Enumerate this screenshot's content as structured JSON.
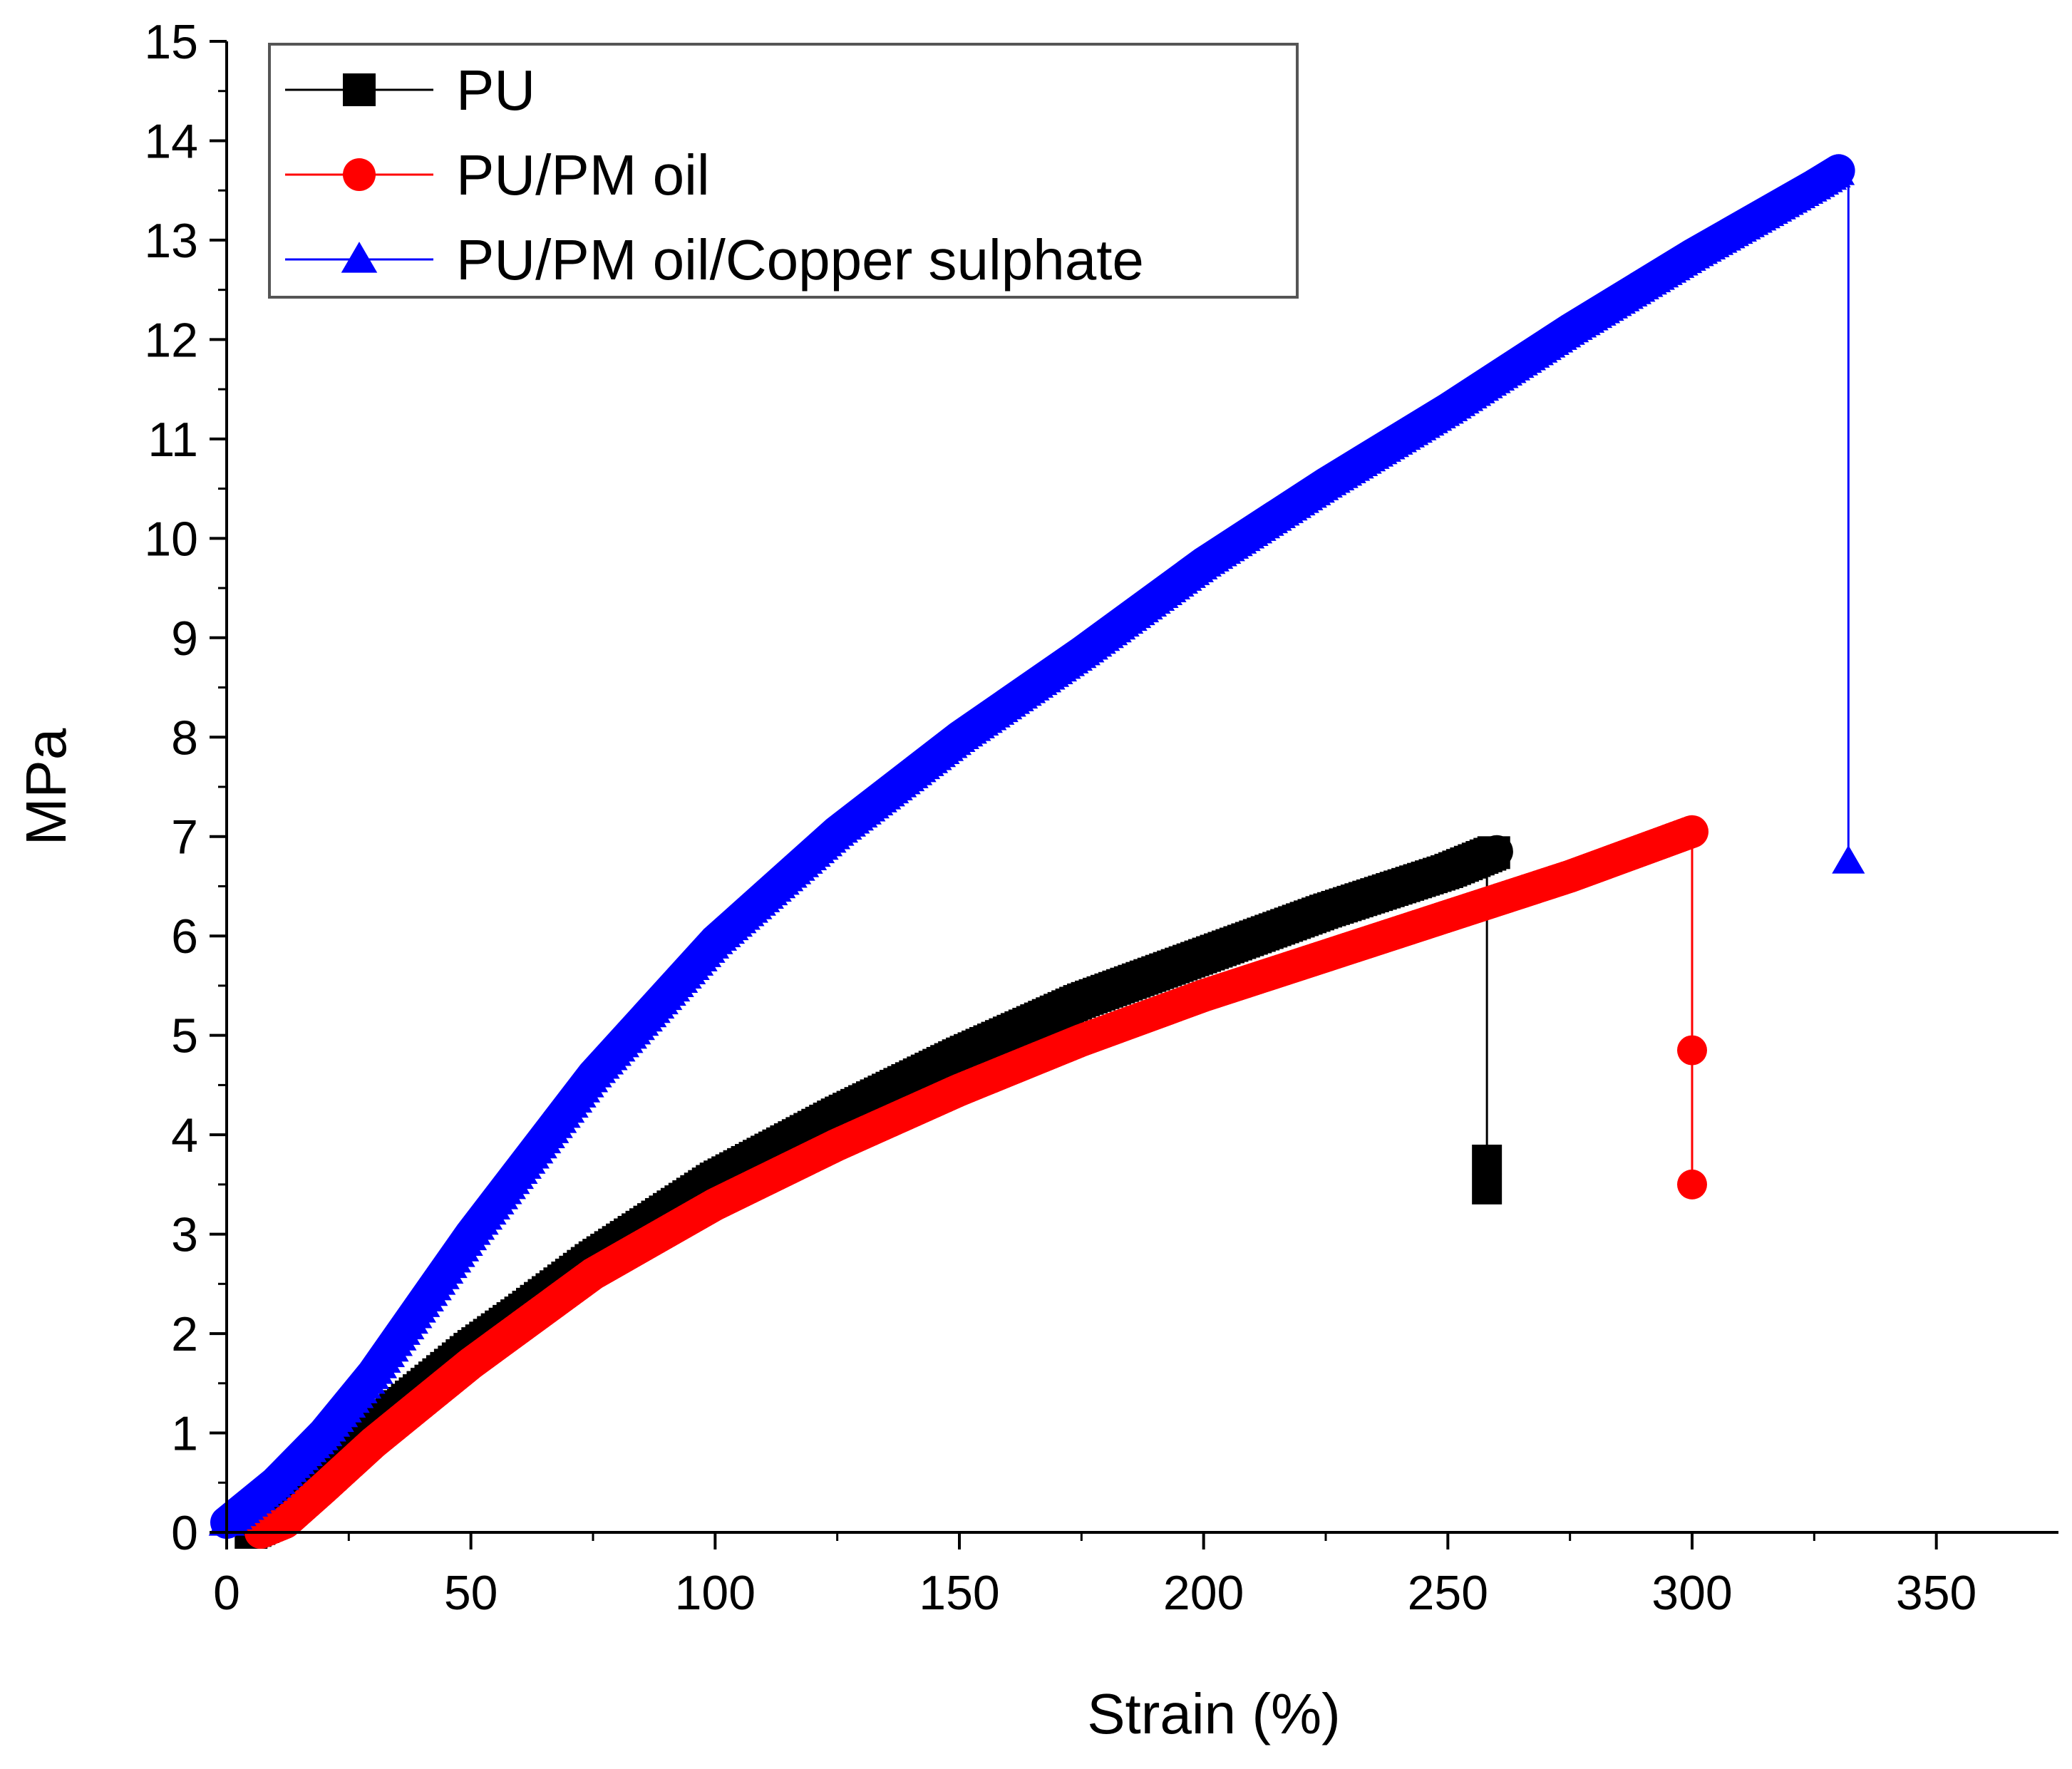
{
  "chart_data": {
    "type": "line",
    "title": "",
    "xlabel": "Strain (%)",
    "ylabel": "MPa",
    "xlim": [
      0,
      375
    ],
    "ylim": [
      0,
      15
    ],
    "x_ticks": [
      0,
      50,
      100,
      150,
      200,
      250,
      300,
      350
    ],
    "y_ticks": [
      0,
      1,
      2,
      3,
      4,
      5,
      6,
      7,
      8,
      9,
      10,
      11,
      12,
      13,
      14,
      15
    ],
    "grid": false,
    "legend_position": "top-left",
    "series": [
      {
        "name": "PU",
        "color": "#000000",
        "marker": "square",
        "points": [
          [
            5,
            0.0
          ],
          [
            10,
            0.12
          ],
          [
            20,
            0.55
          ],
          [
            30,
            1.05
          ],
          [
            40,
            1.45
          ],
          [
            50,
            1.85
          ],
          [
            60,
            2.2
          ],
          [
            75,
            2.75
          ],
          [
            100,
            3.55
          ],
          [
            125,
            4.2
          ],
          [
            150,
            4.8
          ],
          [
            175,
            5.35
          ],
          [
            200,
            5.8
          ],
          [
            225,
            6.25
          ],
          [
            250,
            6.65
          ],
          [
            260,
            6.85
          ]
        ],
        "break_points": [
          [
            258,
            3.75
          ],
          [
            258,
            3.45
          ]
        ]
      },
      {
        "name": "PU/PM oil",
        "color": "#ff0000",
        "marker": "circle",
        "points": [
          [
            7,
            0.0
          ],
          [
            12,
            0.1
          ],
          [
            20,
            0.45
          ],
          [
            30,
            0.9
          ],
          [
            40,
            1.3
          ],
          [
            50,
            1.7
          ],
          [
            75,
            2.6
          ],
          [
            100,
            3.3
          ],
          [
            125,
            3.9
          ],
          [
            150,
            4.45
          ],
          [
            175,
            4.95
          ],
          [
            200,
            5.4
          ],
          [
            225,
            5.8
          ],
          [
            250,
            6.2
          ],
          [
            275,
            6.6
          ],
          [
            300,
            7.05
          ]
        ],
        "break_points": [
          [
            300,
            4.85
          ],
          [
            300,
            3.5
          ]
        ]
      },
      {
        "name": "PU/PM oil/Copper sulphate",
        "color": "#0000ff",
        "marker": "triangle",
        "points": [
          [
            0,
            0.1
          ],
          [
            5,
            0.3
          ],
          [
            10,
            0.5
          ],
          [
            20,
            1.0
          ],
          [
            30,
            1.6
          ],
          [
            40,
            2.3
          ],
          [
            50,
            3.0
          ],
          [
            75,
            4.6
          ],
          [
            100,
            5.95
          ],
          [
            125,
            7.05
          ],
          [
            150,
            8.0
          ],
          [
            175,
            8.85
          ],
          [
            200,
            9.75
          ],
          [
            225,
            10.55
          ],
          [
            250,
            11.3
          ],
          [
            275,
            12.1
          ],
          [
            300,
            12.85
          ],
          [
            325,
            13.55
          ],
          [
            330,
            13.7
          ]
        ],
        "break_points": [
          [
            332,
            6.75
          ]
        ]
      }
    ]
  }
}
